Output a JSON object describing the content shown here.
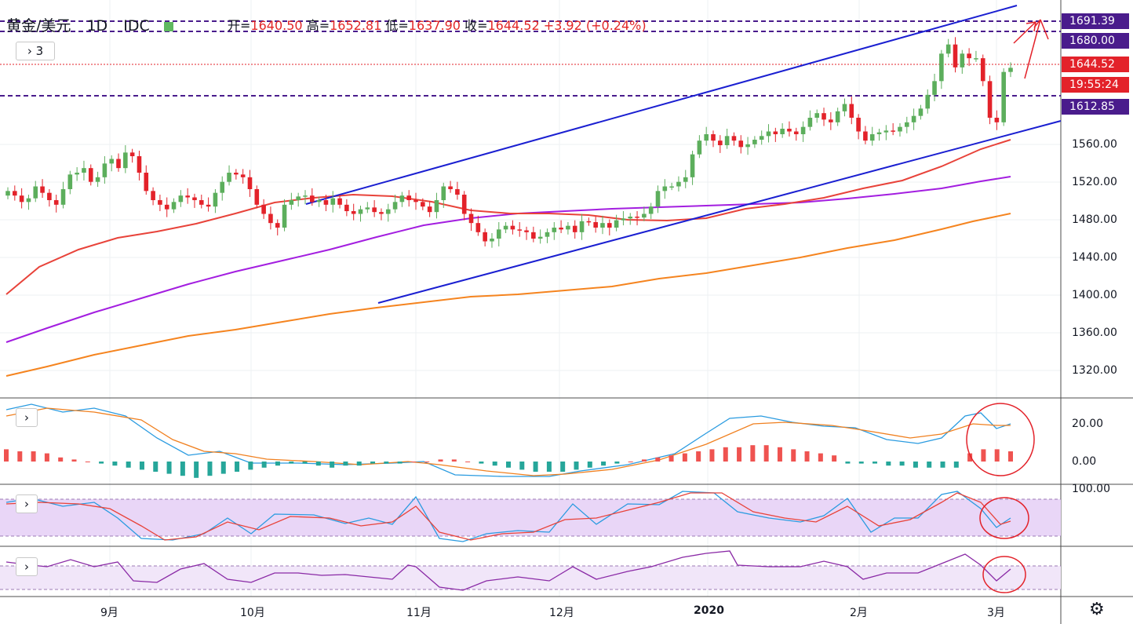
{
  "header": {
    "symbol": "黄金/美元",
    "interval": "1D",
    "source": "IDC",
    "open_label": "开=",
    "open": "1640.50",
    "high_label": "高=",
    "high": "1652.81",
    "low_label": "低=",
    "low": "1637.90",
    "close_label": "收=",
    "close": "1644.52",
    "change": "+3.92 (+0.24%)",
    "indicators_toggle": "3"
  },
  "colors": {
    "up": "#5cae5c",
    "down": "#e3222a",
    "channel": "#1a1fd1",
    "ma_short": "#e8433a",
    "ma_mid": "#a31ee0",
    "ma_long": "#f5841f",
    "dashed": "#4a1c8c",
    "annotation": "#e3222a"
  },
  "price_axis": [
    "1320.00",
    "1360.00",
    "1400.00",
    "1440.00",
    "1480.00",
    "1520.00",
    "1560.00"
  ],
  "price_labels": {
    "level_high": "1691.39",
    "level_mid": "1680.00",
    "last_price": "1644.52",
    "countdown": "19:55:24",
    "level_low": "1612.85"
  },
  "time_axis": [
    "9月",
    "10月",
    "11月",
    "12月",
    "2020",
    "2月",
    "3月"
  ],
  "macd_axis": [
    "20.00",
    "0.00"
  ],
  "stoch_axis": [
    "100.00"
  ],
  "chart_data": {
    "type": "candlestick",
    "title": "黄金/美元 1D IDC",
    "ylim": [
      1290,
      1710
    ],
    "closes": [
      1510,
      1505,
      1498,
      1502,
      1515,
      1508,
      1500,
      1495,
      1512,
      1528,
      1530,
      1535,
      1520,
      1525,
      1540,
      1545,
      1535,
      1552,
      1548,
      1530,
      1510,
      1500,
      1495,
      1490,
      1498,
      1505,
      1503,
      1500,
      1495,
      1493,
      1508,
      1520,
      1530,
      1528,
      1525,
      1512,
      1495,
      1485,
      1475,
      1470,
      1495,
      1500,
      1504,
      1505,
      1498,
      1500,
      1495,
      1502,
      1495,
      1488,
      1485,
      1490,
      1492,
      1487,
      1485,
      1490,
      1498,
      1505,
      1500,
      1498,
      1493,
      1487,
      1500,
      1515,
      1512,
      1506,
      1485,
      1475,
      1465,
      1455,
      1458,
      1468,
      1472,
      1468,
      1467,
      1465,
      1458,
      1460,
      1465,
      1470,
      1468,
      1472,
      1465,
      1477,
      1476,
      1470,
      1475,
      1470,
      1478,
      1480,
      1482,
      1481,
      1485,
      1493,
      1510,
      1515,
      1515,
      1520,
      1525,
      1550,
      1565,
      1572,
      1565,
      1560,
      1570,
      1565,
      1558,
      1561,
      1566,
      1570,
      1575,
      1572,
      1578,
      1575,
      1572,
      1580,
      1590,
      1595,
      1588,
      1585,
      1597,
      1605,
      1590,
      1575,
      1565,
      1572,
      1574,
      1576,
      1575,
      1580,
      1585,
      1592,
      1600,
      1615,
      1630,
      1660,
      1670,
      1645,
      1660,
      1655,
      1655,
      1630,
      1590,
      1585,
      1640,
      1644.52
    ],
    "macd": [
      6,
      5,
      5,
      4,
      2,
      1,
      0,
      -1,
      -2,
      -3,
      -4,
      -5,
      -6,
      -7,
      -8,
      -7,
      -6,
      -5,
      -4,
      -3,
      -2,
      -1,
      -1,
      -2,
      -3,
      -2,
      -2,
      -1,
      -1,
      -1,
      0,
      0,
      1,
      1,
      0,
      -1,
      -2,
      -3,
      -4,
      -5,
      -5,
      -5,
      -4,
      -3,
      -2,
      -1,
      0,
      1,
      2,
      3,
      4,
      5,
      6,
      7,
      7,
      8,
      8,
      7,
      6,
      5,
      4,
      3,
      -1,
      -1,
      -1,
      -2,
      -2,
      -3,
      -3,
      -3,
      -3,
      4,
      6,
      6,
      5
    ],
    "stoch": [
      90,
      85,
      80,
      75,
      60,
      30,
      10,
      5,
      8,
      20,
      45,
      60,
      62,
      55,
      40,
      30,
      50,
      70,
      85,
      80,
      55,
      30,
      10,
      8,
      15,
      30,
      55,
      70,
      62,
      50,
      55,
      68,
      82,
      88,
      92,
      90,
      85,
      80,
      70,
      55,
      50,
      60,
      75,
      90,
      85,
      60,
      30,
      40,
      60,
      55,
      50,
      55,
      70,
      85,
      88,
      82,
      70,
      50,
      30,
      25,
      28
    ]
  }
}
